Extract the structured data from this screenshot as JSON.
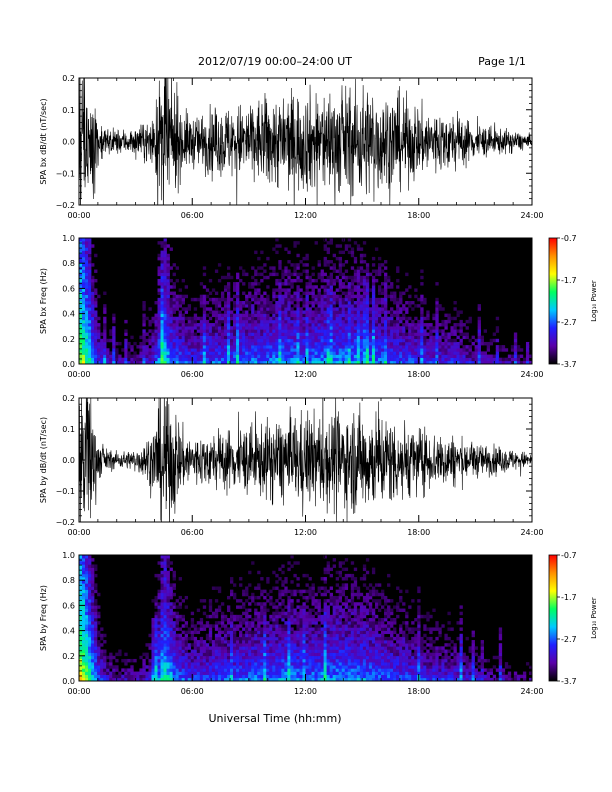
{
  "header": {
    "title": "2012/07/19   00:00–24:00 UT",
    "page": "Page 1/1"
  },
  "xaxis": {
    "label": "Universal Time (hh:mm)",
    "range_hours": [
      0,
      24
    ],
    "ticks": [
      0,
      6,
      12,
      18,
      24
    ],
    "tick_labels": [
      "00:00",
      "06:00",
      "12:00",
      "18:00",
      "24:00"
    ]
  },
  "colorbar": {
    "label": "Log₁₀ Power",
    "range": [
      -3.7,
      -0.7
    ],
    "tick_values": [
      -0.7,
      -1.7,
      -2.7,
      -3.7
    ],
    "tick_labels": [
      "-0.7",
      "-1.7",
      "-2.7",
      "-3.7"
    ],
    "colors": [
      "#000000",
      "#5a00a8",
      "#2020ff",
      "#00c8ff",
      "#00ff60",
      "#ffff00",
      "#ff9000",
      "#ff0000"
    ]
  },
  "chart_data": [
    {
      "type": "line",
      "ylabel": "SPA bx dB/dt (nT/sec)",
      "ylim": [
        -0.2,
        0.2
      ],
      "yticks": [
        -0.2,
        -0.1,
        0.0,
        0.1,
        0.2
      ],
      "ytick_labels": [
        "−0.2",
        "−0.1",
        "0.0",
        "0.1",
        "0.2"
      ],
      "color": "#000000",
      "series": [
        {
          "x": [
            0,
            0.5,
            1.0,
            1.5,
            2,
            2.5,
            3,
            3.5,
            4,
            4.5,
            5,
            5.5,
            6,
            7,
            8,
            9,
            10,
            11,
            12,
            13,
            14,
            15,
            16,
            17,
            18,
            19,
            20,
            21,
            22,
            23,
            24
          ],
          "amplitude": [
            0.25,
            0.25,
            0.07,
            0.04,
            0.035,
            0.035,
            0.04,
            0.05,
            0.08,
            0.25,
            0.14,
            0.09,
            0.07,
            0.09,
            0.1,
            0.11,
            0.13,
            0.14,
            0.14,
            0.15,
            0.15,
            0.16,
            0.15,
            0.13,
            0.1,
            0.09,
            0.08,
            0.05,
            0.04,
            0.03,
            0.02
          ]
        }
      ]
    },
    {
      "type": "heatmap",
      "ylabel": "SPA bx Freq (Hz)",
      "ylim": [
        0,
        1.0
      ],
      "yticks": [
        0.0,
        0.2,
        0.4,
        0.6,
        0.8,
        1.0
      ],
      "ytick_labels": [
        "0.0",
        "0.2",
        "0.4",
        "0.6",
        "0.8",
        "1.0"
      ],
      "log_power_range": [
        -3.7,
        -0.7
      ],
      "x": [
        0,
        0.5,
        1.0,
        1.5,
        2,
        2.5,
        3,
        3.5,
        4,
        4.5,
        5,
        5.5,
        6,
        7,
        8,
        9,
        10,
        11,
        12,
        13,
        14,
        15,
        16,
        17,
        18,
        19,
        20,
        21,
        22,
        23,
        24
      ],
      "low_freq_log_power": [
        -1.3,
        -1.8,
        -2.6,
        -2.9,
        -3.0,
        -3.0,
        -3.0,
        -2.9,
        -2.6,
        -1.9,
        -2.4,
        -2.5,
        -2.6,
        -2.5,
        -2.5,
        -2.4,
        -2.4,
        -2.3,
        -2.4,
        -2.3,
        -2.3,
        -2.3,
        -2.4,
        -2.5,
        -2.6,
        -2.7,
        -2.7,
        -2.9,
        -3.0,
        -3.1,
        -3.2
      ]
    },
    {
      "type": "line",
      "ylabel": "SPA by dB/dt (nT/sec)",
      "ylim": [
        -0.2,
        0.2
      ],
      "yticks": [
        -0.2,
        -0.1,
        0.0,
        0.1,
        0.2
      ],
      "ytick_labels": [
        "−0.2",
        "−0.1",
        "0.0",
        "0.1",
        "0.2"
      ],
      "color": "#000000",
      "series": [
        {
          "x": [
            0,
            0.5,
            1.0,
            1.5,
            2,
            2.5,
            3,
            3.5,
            4,
            4.5,
            5,
            5.5,
            6,
            7,
            8,
            9,
            10,
            11,
            12,
            13,
            14,
            15,
            16,
            17,
            18,
            19,
            20,
            21,
            22,
            23,
            24
          ],
          "amplitude": [
            0.25,
            0.25,
            0.06,
            0.03,
            0.025,
            0.025,
            0.03,
            0.06,
            0.1,
            0.25,
            0.16,
            0.09,
            0.07,
            0.08,
            0.09,
            0.1,
            0.11,
            0.13,
            0.13,
            0.14,
            0.14,
            0.15,
            0.14,
            0.12,
            0.09,
            0.08,
            0.07,
            0.05,
            0.04,
            0.03,
            0.02
          ]
        }
      ]
    },
    {
      "type": "heatmap",
      "ylabel": "SPA by Freq (Hz)",
      "ylim": [
        0,
        1.0
      ],
      "yticks": [
        0.0,
        0.2,
        0.4,
        0.6,
        0.8,
        1.0
      ],
      "ytick_labels": [
        "0.0",
        "0.2",
        "0.4",
        "0.6",
        "0.8",
        "1.0"
      ],
      "log_power_range": [
        -3.7,
        -0.7
      ],
      "x": [
        0,
        0.5,
        1.0,
        1.5,
        2,
        2.5,
        3,
        3.5,
        4,
        4.5,
        5,
        5.5,
        6,
        7,
        8,
        9,
        10,
        11,
        12,
        13,
        14,
        15,
        16,
        17,
        18,
        19,
        20,
        21,
        22,
        23,
        24
      ],
      "low_freq_log_power": [
        -1.1,
        -1.7,
        -2.5,
        -2.9,
        -3.0,
        -3.0,
        -3.0,
        -2.9,
        -2.6,
        -1.8,
        -2.3,
        -2.5,
        -2.6,
        -2.5,
        -2.5,
        -2.4,
        -2.4,
        -2.3,
        -2.4,
        -2.3,
        -2.3,
        -2.3,
        -2.4,
        -2.5,
        -2.6,
        -2.7,
        -2.7,
        -2.9,
        -3.0,
        -3.1,
        -3.2
      ]
    }
  ]
}
